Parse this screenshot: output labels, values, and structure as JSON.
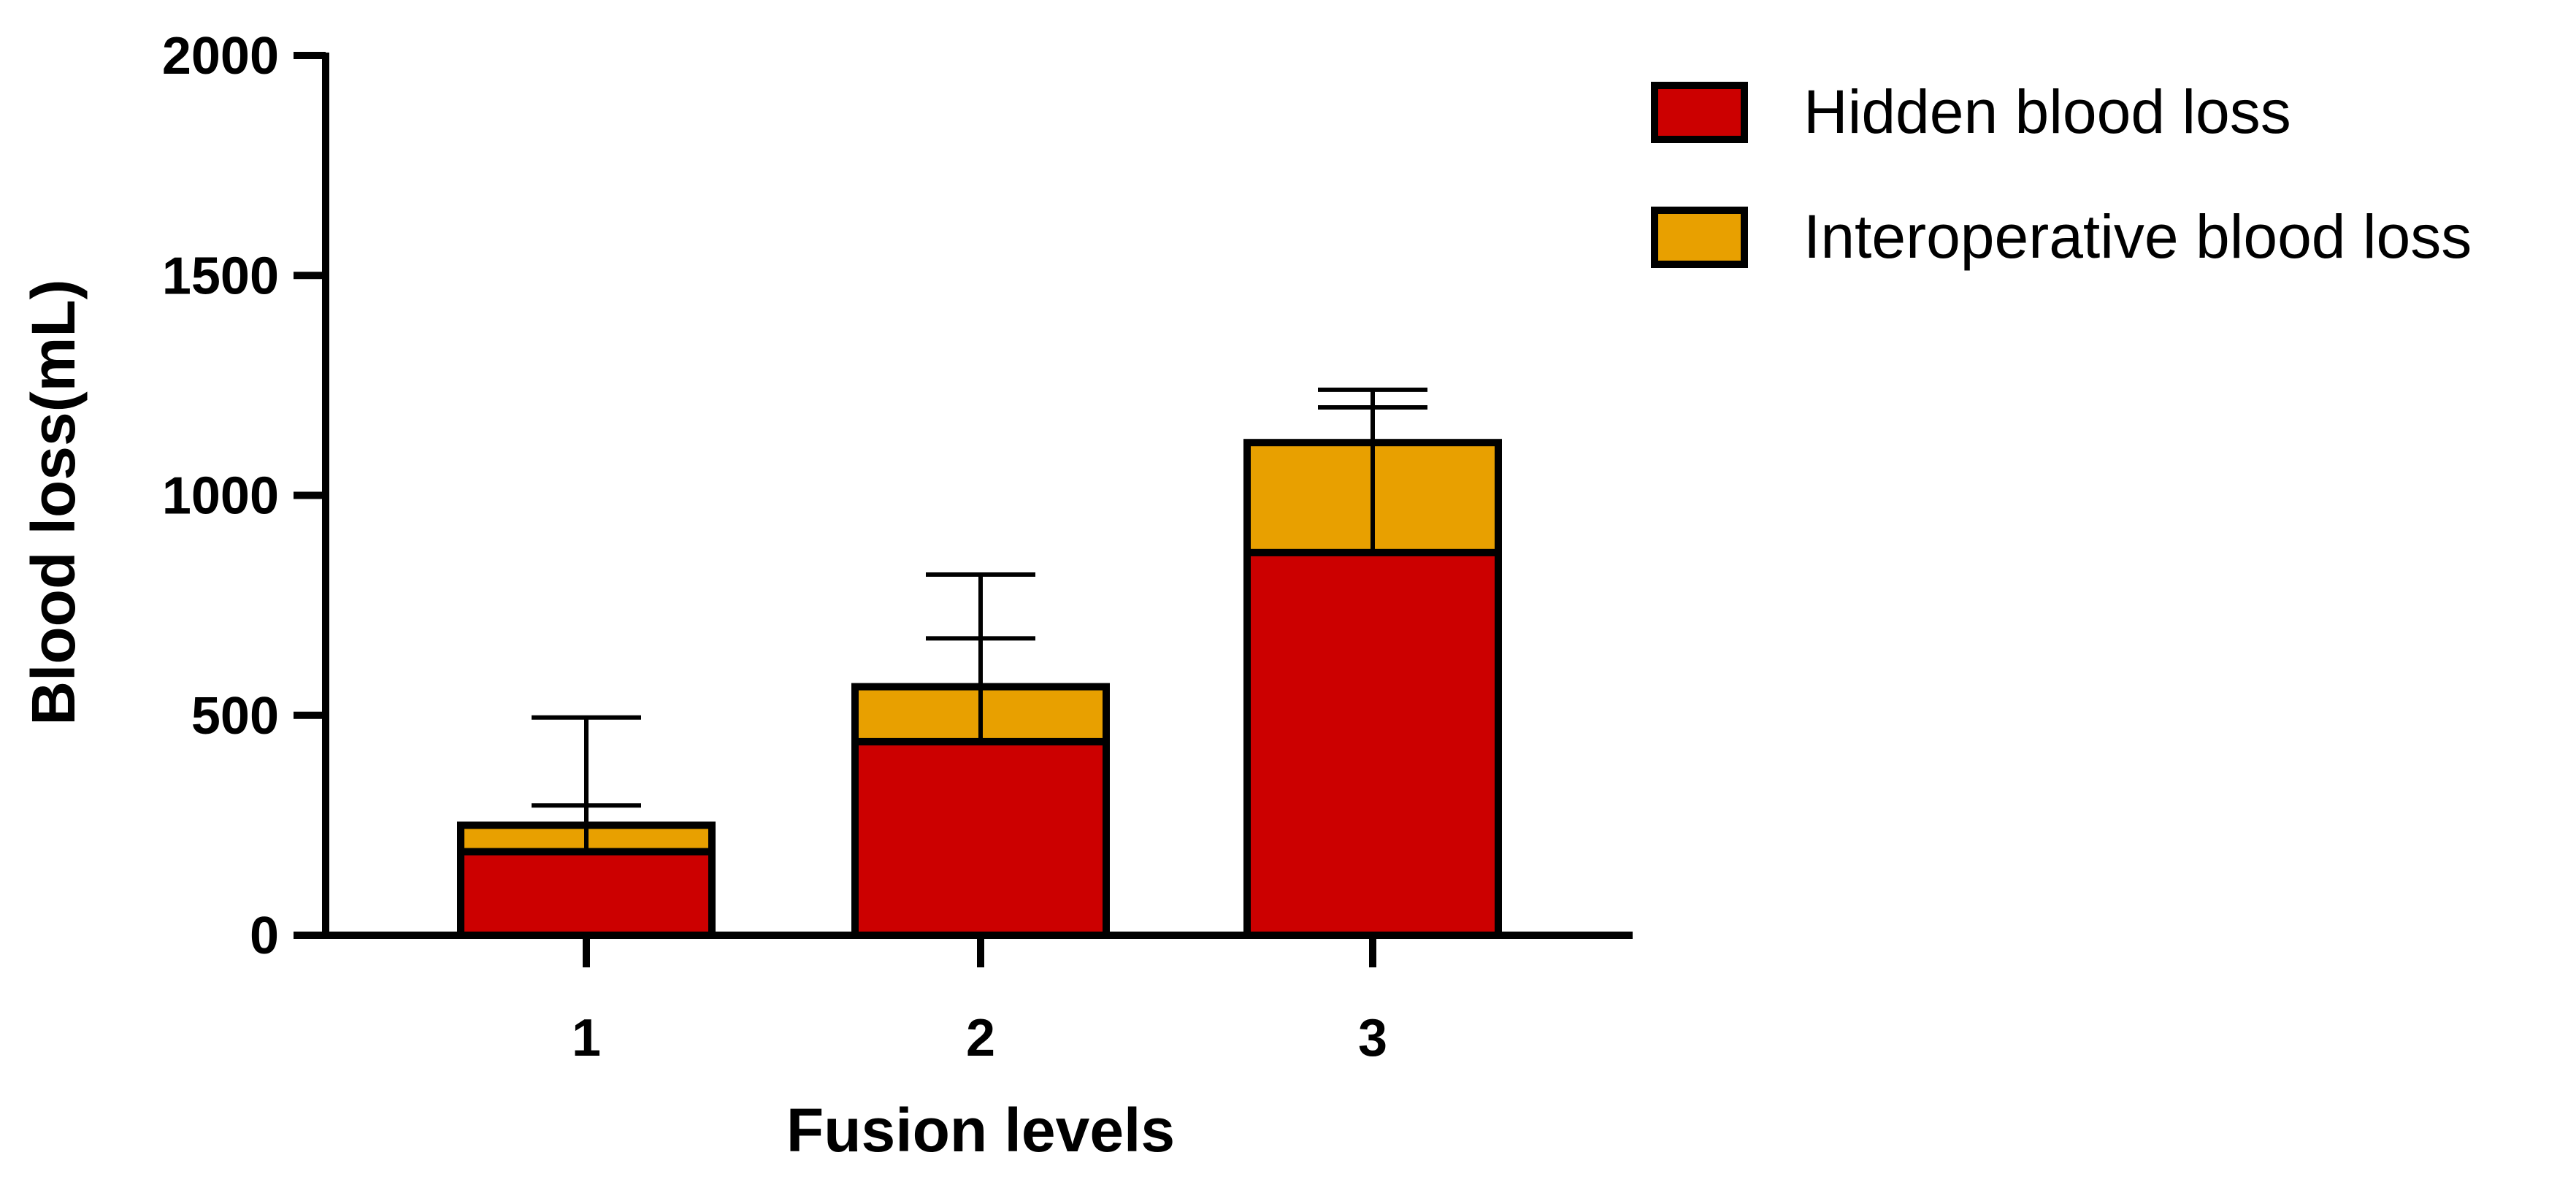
{
  "chart_data": {
    "type": "bar",
    "stacked": true,
    "categories": [
      "1",
      "2",
      "3"
    ],
    "series": [
      {
        "name": "Hidden blood loss",
        "color": "#CC0000",
        "values": [
          190,
          440,
          870
        ],
        "error_upper": [
          105,
          235,
          330
        ]
      },
      {
        "name": "Interoperative blood loss",
        "color": "#E8A000",
        "values": [
          60,
          125,
          250
        ],
        "error_upper": [
          245,
          255,
          120
        ]
      }
    ],
    "xlabel": "Fusion levels",
    "ylabel": "Blood loss(mL)",
    "ylim": [
      0,
      2000
    ],
    "yticks": [
      "0",
      "500",
      "1000",
      "1500",
      "2000"
    ],
    "legend_position": "top-right",
    "grid": false
  }
}
